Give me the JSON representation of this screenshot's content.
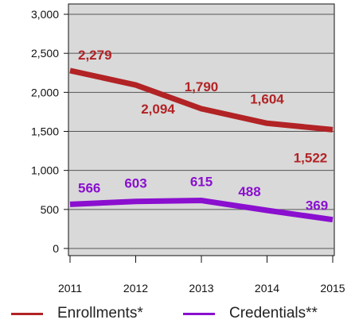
{
  "chart_data": {
    "type": "line",
    "x": [
      "2011",
      "2012",
      "2013",
      "2014",
      "2015"
    ],
    "ylim": [
      0,
      3000
    ],
    "yticks": [
      "3,000",
      "2,500",
      "2,000",
      "1,500",
      "1,000",
      "500",
      "0"
    ],
    "grid": true,
    "legend_position": "bottom",
    "series": [
      {
        "name": "Enrollments*",
        "color": "#b22325",
        "values": [
          2279,
          2094,
          1790,
          1604,
          1522
        ],
        "labels": [
          "2,279",
          "2,094",
          "1,790",
          "1,604",
          "1,522"
        ]
      },
      {
        "name": "Credentials**",
        "color": "#8a0fcf",
        "values": [
          566,
          603,
          615,
          488,
          369
        ],
        "labels": [
          "566",
          "603",
          "615",
          "488",
          "369"
        ]
      }
    ],
    "plot_background": "#d9d9d9"
  }
}
